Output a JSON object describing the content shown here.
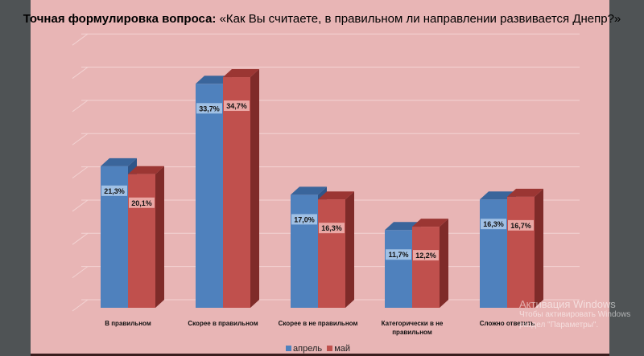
{
  "title_bold": "Точная формулировка вопроса:",
  "title_rest": "«Как Вы считаете, в правильном ли направлении развивается Днепр?»",
  "chart_data": {
    "type": "bar",
    "style": "3d-clustered-column",
    "categories": [
      "В правильном",
      "Скорее в правильном",
      "Скорее в не правильном",
      "Категорически в не правильном",
      "Сложно ответить"
    ],
    "series": [
      {
        "name": "апрель",
        "color": "#4f81bd",
        "values": [
          21.3,
          33.7,
          17.0,
          11.7,
          16.3
        ],
        "labels": [
          "21,3%",
          "33,7%",
          "17,0%",
          "11,7%",
          "16,3%"
        ]
      },
      {
        "name": "май",
        "color": "#c0504d",
        "values": [
          20.1,
          34.7,
          16.3,
          12.2,
          16.7
        ],
        "labels": [
          "20,1%",
          "34,7%",
          "16,3%",
          "12,2%",
          "16,7%"
        ]
      }
    ],
    "ylim": [
      0,
      40
    ],
    "grid": true,
    "legend": "bottom"
  },
  "watermark": {
    "line1": "Активация Windows",
    "line2": "Чтобы активировать Windows",
    "line3": "раздел \"Параметры\"."
  }
}
